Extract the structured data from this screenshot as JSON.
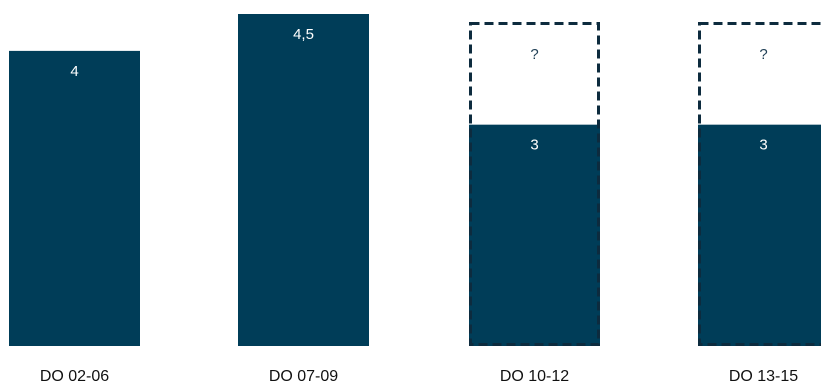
{
  "chart_data": {
    "type": "bar",
    "categories": [
      "DO 02-06",
      "DO 07-09",
      "DO 10-12",
      "DO 13-15"
    ],
    "values": [
      4,
      4.5,
      3,
      3
    ],
    "value_labels": [
      "4",
      "4,5",
      "3",
      "3"
    ],
    "pending": [
      false,
      false,
      true,
      true
    ],
    "pending_label": "?",
    "pending_top": 4.5,
    "ylim": [
      0,
      4.5
    ],
    "grid": false,
    "colors": {
      "bar": "#003d58",
      "dashed_outline": "#0d2b3e",
      "unknown_text": "#1f3f55",
      "value_text": "#ffffff",
      "category_text": "#111111"
    }
  }
}
